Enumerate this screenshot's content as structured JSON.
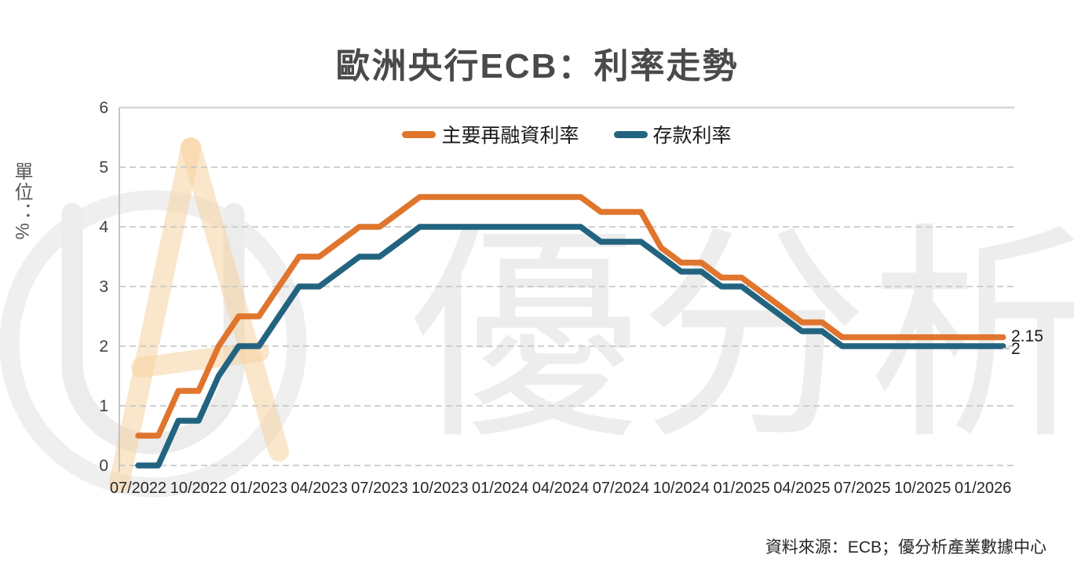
{
  "title": "歐洲央行ECB：利率走勢",
  "y_axis": {
    "unit_label": "單位：%"
  },
  "end_labels": {
    "main_refinancing": "2.15",
    "deposit": "2"
  },
  "source_note": "資料來源：ECB；優分析產業數據中心",
  "watermark": {
    "text": "優分析",
    "logo": "UA"
  },
  "chart_data": {
    "type": "line",
    "title": "歐洲央行ECB：利率走勢",
    "ylabel": "單位：%",
    "ylim": [
      0,
      6
    ],
    "y_ticks": [
      0,
      1,
      2,
      3,
      4,
      5,
      6
    ],
    "grid": "horizontal-dashed",
    "legend_position": "top-center",
    "x": [
      "07/2022",
      "08/2022",
      "09/2022",
      "10/2022",
      "11/2022",
      "12/2022",
      "01/2023",
      "02/2023",
      "03/2023",
      "04/2023",
      "05/2023",
      "06/2023",
      "07/2023",
      "08/2023",
      "09/2023",
      "10/2023",
      "11/2023",
      "12/2023",
      "01/2024",
      "02/2024",
      "03/2024",
      "04/2024",
      "05/2024",
      "06/2024",
      "07/2024",
      "08/2024",
      "09/2024",
      "10/2024",
      "11/2024",
      "12/2024",
      "01/2025",
      "02/2025",
      "03/2025",
      "04/2025",
      "05/2025",
      "06/2025",
      "07/2025",
      "08/2025",
      "09/2025",
      "10/2025",
      "11/2025",
      "12/2025",
      "01/2026",
      "02/2026"
    ],
    "xtick_labels": [
      "07/2022",
      "10/2022",
      "01/2023",
      "04/2023",
      "07/2023",
      "10/2023",
      "01/2024",
      "04/2024",
      "07/2024",
      "10/2024",
      "01/2025",
      "04/2025",
      "07/2025",
      "10/2025",
      "01/2026"
    ],
    "series": [
      {
        "name": "主要再融資利率",
        "color": "#E0752D",
        "end_label": "2.15",
        "values": [
          0.5,
          0.5,
          1.25,
          1.25,
          2.0,
          2.5,
          2.5,
          3.0,
          3.5,
          3.5,
          3.75,
          4.0,
          4.0,
          4.25,
          4.5,
          4.5,
          4.5,
          4.5,
          4.5,
          4.5,
          4.5,
          4.5,
          4.5,
          4.25,
          4.25,
          4.25,
          3.65,
          3.4,
          3.4,
          3.15,
          3.15,
          2.9,
          2.65,
          2.4,
          2.4,
          2.15,
          2.15,
          2.15,
          2.15,
          2.15,
          2.15,
          2.15,
          2.15,
          2.15
        ]
      },
      {
        "name": "存款利率",
        "color": "#226480",
        "end_label": "2",
        "values": [
          0.0,
          0.0,
          0.75,
          0.75,
          1.5,
          2.0,
          2.0,
          2.5,
          3.0,
          3.0,
          3.25,
          3.5,
          3.5,
          3.75,
          4.0,
          4.0,
          4.0,
          4.0,
          4.0,
          4.0,
          4.0,
          4.0,
          4.0,
          3.75,
          3.75,
          3.75,
          3.5,
          3.25,
          3.25,
          3.0,
          3.0,
          2.75,
          2.5,
          2.25,
          2.25,
          2.0,
          2.0,
          2.0,
          2.0,
          2.0,
          2.0,
          2.0,
          2.0,
          2.0
        ]
      }
    ]
  }
}
